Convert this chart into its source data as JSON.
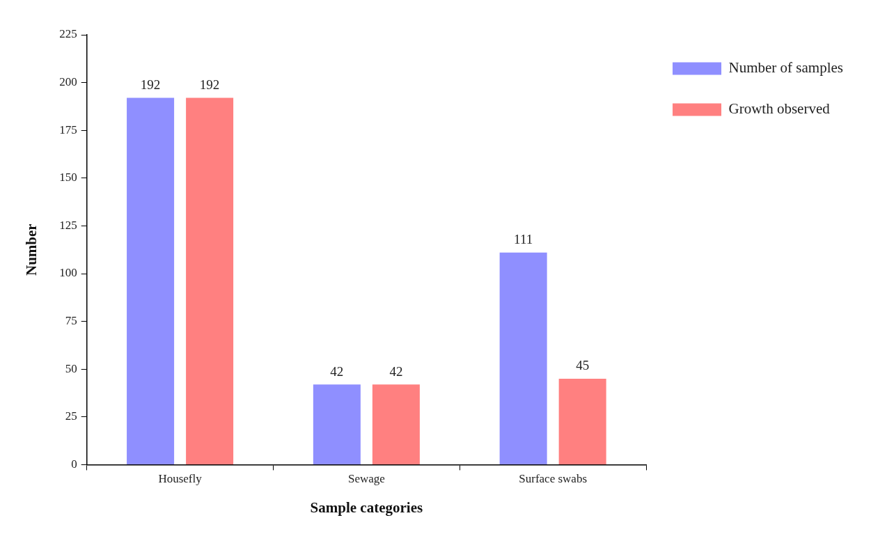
{
  "chart_data": {
    "type": "bar",
    "xlabel": "Sample categories",
    "ylabel": "Number",
    "categories": [
      "Housefly",
      "Sewage",
      "Surface swabs"
    ],
    "series": [
      {
        "name": "Number of samples",
        "color": "#8f8fff",
        "values": [
          192,
          42,
          111
        ]
      },
      {
        "name": "Growth observed",
        "color": "#ff8080",
        "values": [
          192,
          42,
          45
        ]
      }
    ],
    "ylim": [
      0,
      225
    ],
    "yticks": [
      0,
      25,
      50,
      75,
      100,
      125,
      150,
      175,
      200,
      225
    ],
    "grid": false,
    "legend": "top right",
    "data_labels": true
  }
}
